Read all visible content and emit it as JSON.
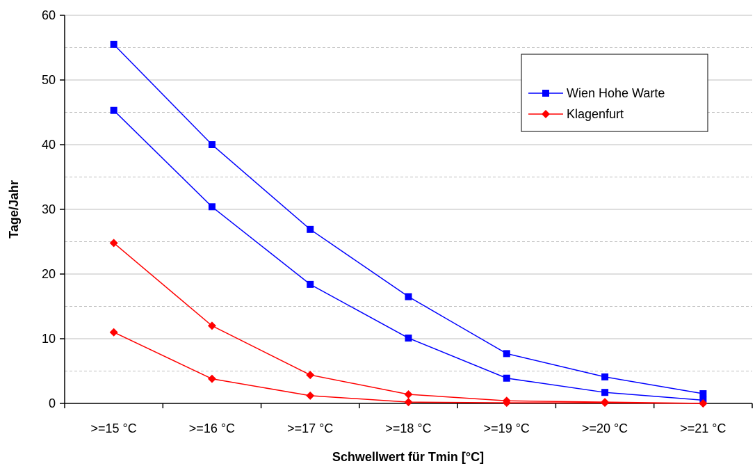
{
  "chart_data": {
    "type": "line",
    "categories": [
      ">=15 °C",
      ">=16 °C",
      ">=17 °C",
      ">=18 °C",
      ">=19 °C",
      ">=20 °C",
      ">=21 °C"
    ],
    "series": [
      {
        "name": "Wien Hohe Warte",
        "color": "#0000FF",
        "marker": "square",
        "values": [
          55.5,
          40.0,
          26.9,
          16.5,
          7.7,
          4.1,
          1.5
        ]
      },
      {
        "name": "",
        "color": "#0000FF",
        "marker": "square",
        "values": [
          45.3,
          30.4,
          18.4,
          10.1,
          3.9,
          1.7,
          0.5
        ]
      },
      {
        "name": "Klagenfurt",
        "color": "#FF0000",
        "marker": "diamond",
        "values": [
          24.8,
          12.0,
          4.4,
          1.4,
          0.4,
          0.2,
          0.0
        ]
      },
      {
        "name": "",
        "color": "#FF0000",
        "marker": "diamond",
        "values": [
          11.0,
          3.8,
          1.2,
          0.2,
          0.1,
          0.1,
          0.0
        ]
      }
    ],
    "xlabel": "Schwellwert für Tmin [°C]",
    "ylabel": "Tage/Jahr",
    "ylim": [
      0,
      60
    ],
    "yticks": [
      0,
      10,
      20,
      30,
      40,
      50,
      60
    ],
    "grid": "horizontal dashed",
    "legend_position": "top-right",
    "legend": [
      {
        "label": "Wien Hohe Warte",
        "color": "#0000FF",
        "marker": "square"
      },
      {
        "label": "Klagenfurt",
        "color": "#FF0000",
        "marker": "diamond"
      }
    ]
  }
}
